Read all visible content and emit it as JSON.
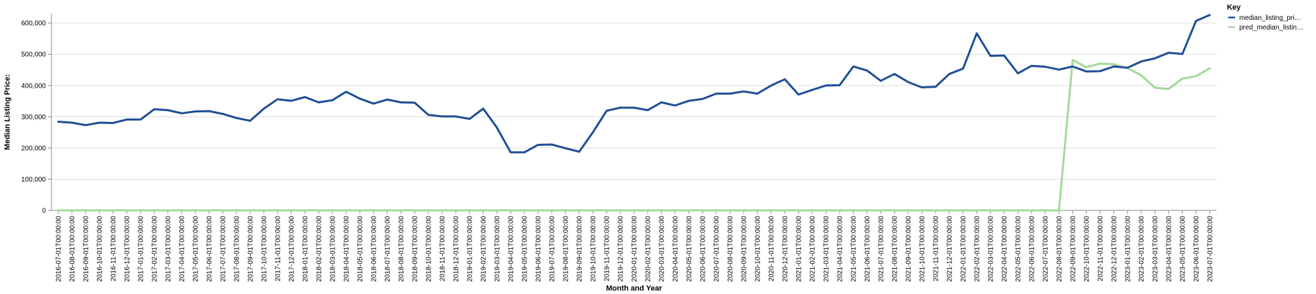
{
  "chart_data": {
    "type": "line",
    "xlabel": "Month and Year",
    "ylabel": "Median Listing Price:",
    "ylim": [
      0,
      630000
    ],
    "y_ticks": [
      0,
      100000,
      200000,
      300000,
      400000,
      500000,
      600000
    ],
    "y_tick_labels": [
      "0",
      "100,000",
      "200,000",
      "300,000",
      "400,000",
      "500,000",
      "600,000"
    ],
    "grid": "horizontal",
    "legend": {
      "title": "Key",
      "placement": "top-right",
      "entries": [
        "median_listing_pri…",
        "pred_median_listin…"
      ]
    },
    "x": [
      "2016-07-01T00:00:00",
      "2016-08-01T00:00:00",
      "2016-09-01T00:00:00",
      "2016-10-01T00:00:00",
      "2016-11-01T00:00:00",
      "2016-12-01T00:00:00",
      "2017-01-01T00:00:00",
      "2017-02-01T00:00:00",
      "2017-03-01T00:00:00",
      "2017-04-01T00:00:00",
      "2017-05-01T00:00:00",
      "2017-06-01T00:00:00",
      "2017-07-01T00:00:00",
      "2017-08-01T00:00:00",
      "2017-09-01T00:00:00",
      "2017-10-01T00:00:00",
      "2017-11-01T00:00:00",
      "2017-12-01T00:00:00",
      "2018-01-01T00:00:00",
      "2018-02-01T00:00:00",
      "2018-03-01T00:00:00",
      "2018-04-01T00:00:00",
      "2018-05-01T00:00:00",
      "2018-06-01T00:00:00",
      "2018-07-01T00:00:00",
      "2018-08-01T00:00:00",
      "2018-09-01T00:00:00",
      "2018-10-01T00:00:00",
      "2018-11-01T00:00:00",
      "2018-12-01T00:00:00",
      "2019-01-01T00:00:00",
      "2019-02-01T00:00:00",
      "2019-03-01T00:00:00",
      "2019-04-01T00:00:00",
      "2019-05-01T00:00:00",
      "2019-06-01T00:00:00",
      "2019-07-01T00:00:00",
      "2019-08-01T00:00:00",
      "2019-09-01T00:00:00",
      "2019-10-01T00:00:00",
      "2019-11-01T00:00:00",
      "2019-12-01T00:00:00",
      "2020-01-01T00:00:00",
      "2020-02-01T00:00:00",
      "2020-03-01T00:00:00",
      "2020-04-01T00:00:00",
      "2020-05-01T00:00:00",
      "2020-06-01T00:00:00",
      "2020-07-01T00:00:00",
      "2020-08-01T00:00:00",
      "2020-09-01T00:00:00",
      "2020-10-01T00:00:00",
      "2020-11-01T00:00:00",
      "2020-12-01T00:00:00",
      "2021-01-01T00:00:00",
      "2021-02-01T00:00:00",
      "2021-03-01T00:00:00",
      "2021-04-01T00:00:00",
      "2021-05-01T00:00:00",
      "2021-06-01T00:00:00",
      "2021-07-01T00:00:00",
      "2021-08-01T00:00:00",
      "2021-09-01T00:00:00",
      "2021-10-01T00:00:00",
      "2021-11-01T00:00:00",
      "2021-12-01T00:00:00",
      "2022-01-01T00:00:00",
      "2022-02-01T00:00:00",
      "2022-03-01T00:00:00",
      "2022-04-01T00:00:00",
      "2022-05-01T00:00:00",
      "2022-06-01T00:00:00",
      "2022-07-01T00:00:00",
      "2022-08-01T00:00:00",
      "2022-09-01T00:00:00",
      "2022-10-01T00:00:00",
      "2022-11-01T00:00:00",
      "2022-12-01T00:00:00",
      "2023-01-01T00:00:00",
      "2023-02-01T00:00:00",
      "2023-03-01T00:00:00",
      "2023-04-01T00:00:00",
      "2023-05-01T00:00:00",
      "2023-06-01T00:00:00",
      "2023-07-01T00:00:00"
    ],
    "series": [
      {
        "name": "median_listing_pri…",
        "color": "#1f4e96",
        "values": [
          284000,
          281000,
          273000,
          281000,
          280000,
          291000,
          291000,
          324000,
          321000,
          311000,
          317000,
          318000,
          309000,
          296000,
          287000,
          326000,
          356000,
          351000,
          363000,
          346000,
          353000,
          380000,
          358000,
          342000,
          355000,
          346000,
          345000,
          306000,
          301000,
          301000,
          293000,
          326000,
          265000,
          186000,
          186000,
          210000,
          211000,
          199000,
          188000,
          250000,
          319000,
          329000,
          329000,
          321000,
          346000,
          336000,
          351000,
          357000,
          374000,
          374000,
          381000,
          374000,
          400000,
          420000,
          371000,
          386000,
          400000,
          401000,
          461000,
          448000,
          415000,
          437000,
          411000,
          394000,
          396000,
          437000,
          454000,
          567000,
          495000,
          496000,
          439000,
          463000,
          460000,
          451000,
          461000,
          445000,
          446000,
          461000,
          457000,
          477000,
          487000,
          505000,
          501000,
          607000,
          626000
        ]
      },
      {
        "name": "pred_median_listin…",
        "color": "#a3d99a",
        "values": [
          0,
          0,
          0,
          0,
          0,
          0,
          0,
          0,
          0,
          0,
          0,
          0,
          0,
          0,
          0,
          0,
          0,
          0,
          0,
          0,
          0,
          0,
          0,
          0,
          0,
          0,
          0,
          0,
          0,
          0,
          0,
          0,
          0,
          0,
          0,
          0,
          0,
          0,
          0,
          0,
          0,
          0,
          0,
          0,
          0,
          0,
          0,
          0,
          0,
          0,
          0,
          0,
          0,
          0,
          0,
          0,
          0,
          0,
          0,
          0,
          0,
          0,
          0,
          0,
          0,
          0,
          0,
          0,
          0,
          0,
          0,
          0,
          0,
          0,
          482000,
          459000,
          470000,
          468000,
          455000,
          433000,
          393000,
          389000,
          422000,
          430000,
          455000
        ]
      }
    ]
  }
}
